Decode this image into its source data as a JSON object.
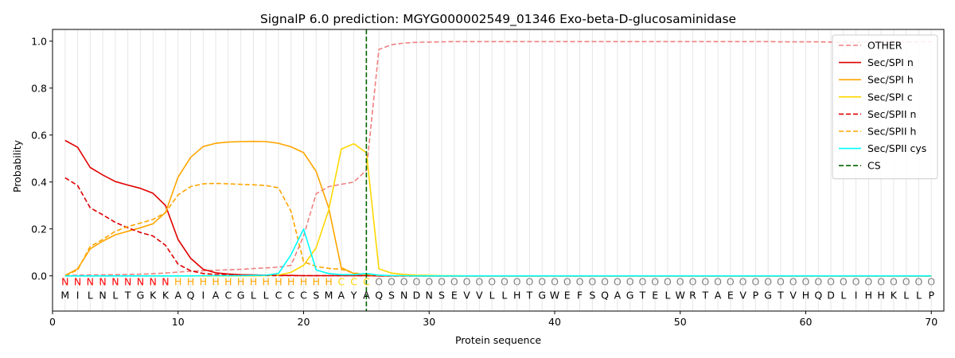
{
  "chart_data": {
    "type": "line",
    "title": "SignalP 6.0 prediction: MGYG000002549_01346 Exo-beta-D-glucosaminidase",
    "xlabel": "Protein sequence",
    "ylabel": "Probability",
    "xlim": [
      0,
      71
    ],
    "ylim": [
      -0.15,
      1.05
    ],
    "x_ticks": [
      0,
      10,
      20,
      30,
      40,
      50,
      60,
      70
    ],
    "y_ticks": [
      0.0,
      0.2,
      0.4,
      0.6,
      0.8,
      1.0
    ],
    "y_tick_labels": [
      "0.0",
      "0.2",
      "0.4",
      "0.6",
      "0.8",
      "1.0"
    ],
    "legend_position": "top-right",
    "sequence": [
      "M",
      "I",
      "L",
      "N",
      "L",
      "T",
      "G",
      "K",
      "K",
      "A",
      "Q",
      "I",
      "A",
      "C",
      "G",
      "L",
      "L",
      "C",
      "C",
      "C",
      "S",
      "M",
      "A",
      "Y",
      "A",
      "Q",
      "S",
      "N",
      "D",
      "N",
      "S",
      "E",
      "V",
      "V",
      "L",
      "L",
      "H",
      "T",
      "G",
      "W",
      "E",
      "F",
      "S",
      "Q",
      "A",
      "G",
      "T",
      "E",
      "L",
      "W",
      "R",
      "T",
      "A",
      "E",
      "V",
      "P",
      "G",
      "T",
      "V",
      "H",
      "Q",
      "D",
      "L",
      "I",
      "H",
      "H",
      "K",
      "L",
      "L",
      "P"
    ],
    "labels": [
      "N",
      "N",
      "N",
      "N",
      "N",
      "N",
      "N",
      "N",
      "N",
      "H",
      "H",
      "H",
      "H",
      "H",
      "H",
      "H",
      "H",
      "H",
      "H",
      "H",
      "H",
      "H",
      "C",
      "C",
      "C",
      "O",
      "O",
      "O",
      "O",
      "O",
      "O",
      "O",
      "O",
      "O",
      "O",
      "O",
      "O",
      "O",
      "O",
      "O",
      "O",
      "O",
      "O",
      "O",
      "O",
      "O",
      "O",
      "O",
      "O",
      "O",
      "O",
      "O",
      "O",
      "O",
      "O",
      "O",
      "O",
      "O",
      "O",
      "O",
      "O",
      "O",
      "O",
      "O",
      "O",
      "O",
      "O",
      "O",
      "O",
      "O"
    ],
    "label_colors": {
      "N": "#ff0000",
      "H": "#ffa500",
      "C": "#ffd700",
      "O": "#808080"
    },
    "cleavage_site": 25,
    "series": [
      {
        "name": "OTHER",
        "color": "#f08080",
        "dash": true,
        "values": [
          0.002,
          0.003,
          0.004,
          0.004,
          0.005,
          0.006,
          0.007,
          0.009,
          0.012,
          0.016,
          0.02,
          0.022,
          0.024,
          0.026,
          0.028,
          0.031,
          0.034,
          0.037,
          0.045,
          0.17,
          0.35,
          0.38,
          0.39,
          0.4,
          0.45,
          0.965,
          0.985,
          0.992,
          0.995,
          0.996,
          0.997,
          0.998,
          0.998,
          0.998,
          0.998,
          0.998,
          0.998,
          0.998,
          0.998,
          0.998,
          0.998,
          0.998,
          0.998,
          0.998,
          0.998,
          0.998,
          0.998,
          0.998,
          0.998,
          0.998,
          0.998,
          0.998,
          0.998,
          0.998,
          0.998,
          0.998,
          0.998,
          0.997,
          0.997,
          0.997,
          0.997,
          0.996,
          0.996,
          0.996,
          0.996,
          0.996,
          0.996,
          0.997,
          0.997,
          0.998
        ]
      },
      {
        "name": "Sec/SPI n",
        "color": "#e00000",
        "dash": false,
        "values": [
          0.577,
          0.548,
          0.462,
          0.43,
          0.402,
          0.387,
          0.373,
          0.352,
          0.3,
          0.155,
          0.075,
          0.028,
          0.013,
          0.008,
          0.005,
          0.004,
          0.003,
          0.002,
          0.002,
          0.001,
          0.001,
          0.001,
          0.001,
          0.001,
          0.001,
          0,
          0,
          0,
          0,
          0,
          0,
          0,
          0,
          0,
          0,
          0,
          0,
          0,
          0,
          0,
          0,
          0,
          0,
          0,
          0,
          0,
          0,
          0,
          0,
          0,
          0,
          0,
          0,
          0,
          0,
          0,
          0,
          0,
          0,
          0,
          0,
          0,
          0,
          0,
          0,
          0,
          0,
          0,
          0,
          0
        ]
      },
      {
        "name": "Sec/SPI h",
        "color": "#ffa500",
        "dash": false,
        "values": [
          0.002,
          0.03,
          0.115,
          0.148,
          0.175,
          0.19,
          0.205,
          0.222,
          0.27,
          0.42,
          0.505,
          0.551,
          0.565,
          0.57,
          0.572,
          0.573,
          0.572,
          0.565,
          0.55,
          0.525,
          0.445,
          0.29,
          0.035,
          0.01,
          0.005,
          0.002,
          0.001,
          0.001,
          0,
          0,
          0,
          0,
          0,
          0,
          0,
          0,
          0,
          0,
          0,
          0,
          0,
          0,
          0,
          0,
          0,
          0,
          0,
          0,
          0,
          0,
          0,
          0,
          0,
          0,
          0,
          0,
          0,
          0,
          0,
          0,
          0,
          0,
          0,
          0,
          0,
          0,
          0,
          0,
          0,
          0
        ]
      },
      {
        "name": "Sec/SPI c",
        "color": "#ffd700",
        "dash": false,
        "values": [
          0,
          0,
          0,
          0,
          0,
          0,
          0,
          0,
          0,
          0,
          0,
          0,
          0,
          0,
          0,
          0,
          0.001,
          0.003,
          0.015,
          0.045,
          0.12,
          0.28,
          0.54,
          0.563,
          0.525,
          0.03,
          0.012,
          0.006,
          0.003,
          0.002,
          0.001,
          0.001,
          0,
          0,
          0,
          0,
          0,
          0,
          0,
          0,
          0,
          0,
          0,
          0,
          0,
          0,
          0,
          0,
          0,
          0,
          0,
          0,
          0,
          0,
          0,
          0,
          0,
          0,
          0,
          0,
          0,
          0,
          0,
          0,
          0,
          0,
          0,
          0,
          0,
          0
        ]
      },
      {
        "name": "Sec/SPII n",
        "color": "#e00000",
        "dash": true,
        "values": [
          0.418,
          0.385,
          0.29,
          0.26,
          0.228,
          0.205,
          0.185,
          0.17,
          0.13,
          0.05,
          0.022,
          0.01,
          0.006,
          0.004,
          0.003,
          0.002,
          0.002,
          0.001,
          0.001,
          0.001,
          0.001,
          0.001,
          0.001,
          0.001,
          0.001,
          0,
          0,
          0,
          0,
          0,
          0,
          0,
          0,
          0,
          0,
          0,
          0,
          0,
          0,
          0,
          0,
          0,
          0,
          0,
          0,
          0,
          0,
          0,
          0,
          0,
          0,
          0,
          0,
          0,
          0,
          0,
          0,
          0,
          0,
          0,
          0,
          0,
          0,
          0,
          0,
          0,
          0,
          0,
          0,
          0
        ]
      },
      {
        "name": "Sec/SPII h",
        "color": "#ffa500",
        "dash": true,
        "values": [
          0.002,
          0.025,
          0.125,
          0.155,
          0.19,
          0.21,
          0.225,
          0.24,
          0.27,
          0.345,
          0.38,
          0.392,
          0.394,
          0.392,
          0.39,
          0.388,
          0.385,
          0.375,
          0.275,
          0.06,
          0.04,
          0.032,
          0.028,
          0.012,
          0.006,
          0.002,
          0.001,
          0.001,
          0,
          0,
          0,
          0,
          0,
          0,
          0,
          0,
          0,
          0,
          0,
          0,
          0,
          0,
          0,
          0,
          0,
          0,
          0,
          0,
          0,
          0,
          0,
          0,
          0,
          0,
          0,
          0,
          0,
          0,
          0,
          0,
          0,
          0,
          0,
          0,
          0,
          0,
          0,
          0,
          0,
          0
        ]
      },
      {
        "name": "Sec/SPII cys",
        "color": "#00ffff",
        "dash": false,
        "values": [
          0,
          0,
          0,
          0,
          0,
          0,
          0,
          0,
          0,
          0,
          0,
          0.001,
          0.001,
          0.001,
          0.001,
          0.002,
          0.003,
          0.01,
          0.09,
          0.2,
          0.025,
          0.01,
          0.005,
          0.005,
          0.01,
          0.003,
          0.001,
          0.001,
          0,
          0,
          0,
          0,
          0,
          0,
          0,
          0,
          0,
          0,
          0,
          0,
          0,
          0,
          0,
          0,
          0,
          0,
          0,
          0,
          0,
          0,
          0,
          0,
          0,
          0,
          0,
          0,
          0,
          0,
          0,
          0,
          0,
          0,
          0,
          0,
          0,
          0,
          0,
          0,
          0,
          0
        ]
      },
      {
        "name": "CS",
        "color": "#006400",
        "dash": true,
        "vertical_at": 25
      }
    ]
  }
}
